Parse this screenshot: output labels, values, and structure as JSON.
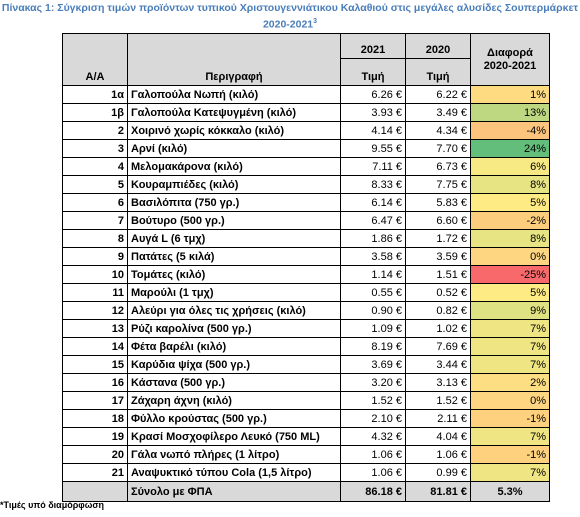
{
  "title": {
    "text": "Πίνακας 1: Σύγκριση τιμών προϊόντων τυπικού Χριστουγεννιάτικου Καλαθιού στις μεγάλες αλυσίδες Σουπερμάρκετ 2020-2021",
    "superscript": "3"
  },
  "table": {
    "header": {
      "aa": "Α/Α",
      "description": "Περιγραφή",
      "year1": "2021",
      "year2": "2020",
      "price1": "Τιμή",
      "price2": "Τιμή",
      "difference": "Διαφορά 2020-2021"
    },
    "rows": [
      [
        "1α",
        "Γαλοπούλα Νωπή (κιλό)",
        "6.26 €",
        "6.22 €",
        "1%"
      ],
      [
        "1β",
        "Γαλοπούλα Κατεψυγμένη (κιλό)",
        "3.93 €",
        "3.49 €",
        "13%"
      ],
      [
        "2",
        "Χοιρινό χωρίς κόκκαλο (κιλό)",
        "4.14 €",
        "4.34 €",
        "-4%"
      ],
      [
        "3",
        "Αρνί (κιλό)",
        "9.55 €",
        "7.70 €",
        "24%"
      ],
      [
        "4",
        "Μελομακάρονα (κιλό)",
        "7.11 €",
        "6.73 €",
        "6%"
      ],
      [
        "5",
        "Κουραμπιέδες (κιλό)",
        "8.33 €",
        "7.75 €",
        "8%"
      ],
      [
        "6",
        "Βασιλόπιτα (750 γρ.)",
        "6.14 €",
        "5.83 €",
        "5%"
      ],
      [
        "7",
        "Βούτυρο (500 γρ.)",
        "6.47 €",
        "6.60 €",
        "-2%"
      ],
      [
        "8",
        "Αυγά L (6 τμχ)",
        "1.86 €",
        "1.72 €",
        "8%"
      ],
      [
        "9",
        "Πατάτες (5 κιλά)",
        "3.58 €",
        "3.59 €",
        "0%"
      ],
      [
        "10",
        "Τομάτες (κιλό)",
        "1.14 €",
        "1.51 €",
        "-25%"
      ],
      [
        "11",
        "Μαρούλι (1 τμχ)",
        "0.55 €",
        "0.52 €",
        "5%"
      ],
      [
        "12",
        "Αλεύρι για όλες τις χρήσεις (κιλό)",
        "0.90 €",
        "0.82 €",
        "9%"
      ],
      [
        "13",
        "Ρύζι καρολίνα (500 γρ.)",
        "1.09 €",
        "1.02 €",
        "7%"
      ],
      [
        "14",
        "Φέτα βαρέλι (κιλό)",
        "8.19 €",
        "7.69 €",
        "7%"
      ],
      [
        "15",
        "Καρύδια ψίχα (500 γρ.)",
        "3.69 €",
        "3.44 €",
        "7%"
      ],
      [
        "16",
        "Κάστανα (500 γρ.)",
        "3.20 €",
        "3.13 €",
        "2%"
      ],
      [
        "17",
        "Ζάχαρη άχνη (κιλό)",
        "1.52 €",
        "1.52 €",
        "0%"
      ],
      [
        "18",
        "Φύλλο κρούστας (500 γρ.)",
        "2.10 €",
        "2.11 €",
        "-1%"
      ],
      [
        "19",
        "Κρασί Μοσχοφίλερο Λευκό (750 ML)",
        "4.32 €",
        "4.04 €",
        "7%"
      ],
      [
        "20",
        "Γάλα νωπό πλήρες (1 λίτρο)",
        "1.06 €",
        "1.06 €",
        "-1%"
      ],
      [
        "21",
        "Αναψυκτικό τύπου Cola (1,5 λίτρο)",
        "1.06 €",
        "0.99 €",
        "7%"
      ]
    ],
    "total": [
      "Σύνολο με ΦΠΑ",
      "86.18 €",
      "81.81 €",
      "5.3%"
    ]
  },
  "footnote": "*Τιμές υπό διαμόρφωση"
}
